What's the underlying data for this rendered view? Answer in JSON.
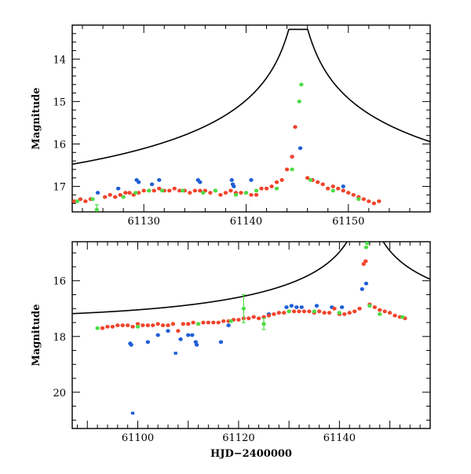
{
  "chart_data": [
    {
      "type": "scatter",
      "panel": "top",
      "title": "",
      "xlabel": "",
      "ylabel": "Magnitude",
      "xlim": [
        61123,
        61158
      ],
      "ylim": [
        17.6,
        13.2
      ],
      "y_inverted": true,
      "x_ticks": [
        61130,
        61140,
        61150
      ],
      "x_tick_labels": [
        "61130",
        "61140",
        "61150"
      ],
      "y_ticks": [
        14,
        15,
        16,
        17
      ],
      "y_tick_labels": [
        "14",
        "15",
        "16",
        "17"
      ],
      "model": {
        "name": "model curve",
        "color": "#000000",
        "peak_x": 61145.1,
        "peak_y": 13.3,
        "baseline": 17.4,
        "u0": 0.0125,
        "tE": 48
      },
      "series": [
        {
          "name": "blue",
          "color": "#1f5fd6",
          "x": [
            61125.5,
            61127.5,
            61129.3,
            61129.5,
            61130.8,
            61131.5,
            61135.3,
            61135.5,
            61138.6,
            61138.7,
            61138.8,
            61140.5,
            61144.5,
            61145.3,
            61149.5
          ],
          "y": [
            17.15,
            17.05,
            16.85,
            16.9,
            16.95,
            16.85,
            16.85,
            16.9,
            16.85,
            16.95,
            17.0,
            16.85,
            16.3,
            16.1,
            17.0
          ]
        },
        {
          "name": "red",
          "color": "#f2442c",
          "x": [
            61123.2,
            61123.8,
            61124.3,
            61124.8,
            61126.2,
            61126.7,
            61127.2,
            61127.7,
            61128.2,
            61128.6,
            61129.0,
            61129.5,
            61130.0,
            61130.5,
            61131.0,
            61131.5,
            61132.0,
            61132.5,
            61133.0,
            61133.5,
            61134.0,
            61134.5,
            61135.0,
            61135.5,
            61136.0,
            61136.5,
            61137.0,
            61137.5,
            61138.0,
            61138.5,
            61139.0,
            61139.5,
            61140.0,
            61140.5,
            61141.0,
            61141.5,
            61142.0,
            61142.5,
            61143.0,
            61143.5,
            61144.0,
            61144.5,
            61144.8,
            61146.0,
            61146.5,
            61147.0,
            61147.5,
            61148.0,
            61148.5,
            61149.0,
            61149.5,
            61150.0,
            61150.5,
            61151.0,
            61151.5,
            61152.0,
            61152.5,
            61153.0
          ],
          "y": [
            17.35,
            17.3,
            17.35,
            17.3,
            17.25,
            17.2,
            17.25,
            17.2,
            17.15,
            17.15,
            17.2,
            17.15,
            17.1,
            17.1,
            17.1,
            17.05,
            17.1,
            17.1,
            17.05,
            17.1,
            17.1,
            17.15,
            17.1,
            17.1,
            17.1,
            17.15,
            17.1,
            17.2,
            17.15,
            17.1,
            17.15,
            17.15,
            17.15,
            17.2,
            17.2,
            17.05,
            17.05,
            17.0,
            16.9,
            16.85,
            16.6,
            16.3,
            15.6,
            16.8,
            16.85,
            16.9,
            16.95,
            17.05,
            17.0,
            17.05,
            17.1,
            17.15,
            17.2,
            17.25,
            17.3,
            17.35,
            17.4,
            17.35
          ]
        },
        {
          "name": "green",
          "color": "#4ddc45",
          "x": [
            61123.5,
            61125.0,
            61125.4,
            61128.0,
            61129.2,
            61130.5,
            61131.8,
            61133.8,
            61135.8,
            61137.0,
            61139.0,
            61140.0,
            61141.0,
            61143.0,
            61144.5,
            61145.2,
            61145.4,
            61146.3,
            61148.5,
            61151.0
          ],
          "y": [
            17.35,
            17.3,
            17.55,
            17.25,
            17.15,
            17.1,
            17.1,
            17.1,
            17.15,
            17.1,
            17.2,
            17.15,
            17.1,
            17.05,
            16.6,
            15.0,
            14.6,
            16.85,
            17.1,
            17.3
          ],
          "err": [
            0,
            0,
            0.12,
            0,
            0,
            0,
            0,
            0,
            0,
            0,
            0,
            0,
            0,
            0,
            0,
            0,
            0,
            0,
            0,
            0
          ]
        }
      ]
    },
    {
      "type": "scatter",
      "panel": "bottom",
      "title": "",
      "xlabel": "HJD−2400000",
      "ylabel": "Magnitude",
      "xlim": [
        61087,
        61158
      ],
      "ylim": [
        21.3,
        14.6
      ],
      "y_inverted": true,
      "x_ticks": [
        61100,
        61120,
        61140
      ],
      "x_tick_labels": [
        "61100",
        "61120",
        "61140"
      ],
      "y_ticks": [
        16,
        18,
        20
      ],
      "y_tick_labels": [
        "16",
        "18",
        "20"
      ],
      "model": {
        "name": "model curve",
        "color": "#000000",
        "peak_x": 61145.1,
        "peak_y": 13.3,
        "baseline": 17.4,
        "u0": 0.0125,
        "tE": 48
      },
      "series": [
        {
          "name": "blue",
          "color": "#1f5fd6",
          "x": [
            61098.5,
            61098.7,
            61099.0,
            61102.0,
            61104.0,
            61106.0,
            61107.5,
            61108.5,
            61110.0,
            61110.8,
            61111.5,
            61111.7,
            61116.5,
            61118.0,
            61126.0,
            61129.5,
            61130.5,
            61131.5,
            61132.5,
            61135.5,
            61138.5,
            61140.5,
            61144.5,
            61145.3
          ],
          "y": [
            18.25,
            18.3,
            20.75,
            18.2,
            17.95,
            17.8,
            18.6,
            18.1,
            17.95,
            17.95,
            18.2,
            18.3,
            18.2,
            17.6,
            17.2,
            16.95,
            16.9,
            16.95,
            16.95,
            16.9,
            16.95,
            16.95,
            16.3,
            16.1
          ]
        },
        {
          "name": "red",
          "color": "#f2442c",
          "x": [
            61093,
            61094,
            61095,
            61096,
            61097,
            61098,
            61099,
            61100,
            61101,
            61102,
            61103,
            61104,
            61105,
            61106,
            61107,
            61108,
            61109,
            61110,
            61111,
            61112,
            61113,
            61114,
            61115,
            61116,
            61117,
            61118,
            61119,
            61120,
            61121,
            61122,
            61123,
            61124,
            61125,
            61126,
            61127,
            61128,
            61129,
            61130,
            61131,
            61132,
            61133,
            61134,
            61135,
            61136,
            61137,
            61138,
            61139,
            61140,
            61141,
            61142,
            61143,
            61144,
            61144.8,
            61145.2,
            61146,
            61147,
            61148,
            61149,
            61150,
            61151,
            61152,
            61153
          ],
          "y": [
            17.7,
            17.65,
            17.65,
            17.6,
            17.6,
            17.6,
            17.65,
            17.55,
            17.6,
            17.6,
            17.6,
            17.55,
            17.6,
            17.6,
            17.55,
            17.8,
            17.55,
            17.55,
            17.5,
            17.55,
            17.5,
            17.5,
            17.5,
            17.5,
            17.45,
            17.45,
            17.4,
            17.4,
            17.35,
            17.35,
            17.3,
            17.35,
            17.3,
            17.25,
            17.2,
            17.15,
            17.15,
            17.1,
            17.1,
            17.1,
            17.1,
            17.1,
            17.15,
            17.1,
            17.15,
            17.15,
            17.0,
            17.2,
            17.2,
            17.15,
            17.1,
            17.0,
            15.4,
            15.3,
            16.85,
            16.95,
            17.05,
            17.1,
            17.15,
            17.25,
            17.3,
            17.35
          ]
        },
        {
          "name": "green",
          "color": "#4ddc45",
          "x": [
            61092.0,
            61100.0,
            61112.0,
            61118.5,
            61121.0,
            61125.0,
            61130.0,
            61135.0,
            61140.0,
            61145.3,
            61145.5,
            61146.0,
            61148.0,
            61152.5
          ],
          "y": [
            17.7,
            17.65,
            17.55,
            17.45,
            17.0,
            17.55,
            17.1,
            17.1,
            17.15,
            14.8,
            14.65,
            16.9,
            17.2,
            17.3
          ],
          "err": [
            0,
            0,
            0,
            0,
            0.5,
            0.2,
            0,
            0,
            0,
            0,
            0,
            0,
            0,
            0
          ]
        }
      ]
    }
  ]
}
